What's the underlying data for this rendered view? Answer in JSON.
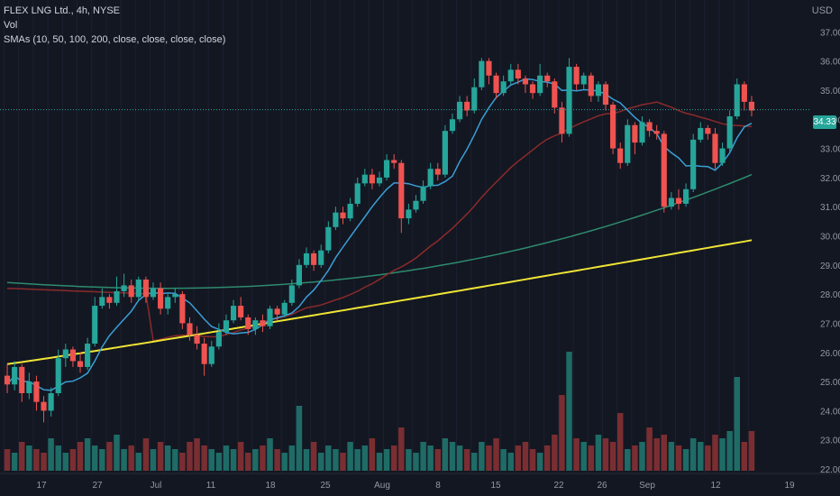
{
  "legend": {
    "symbol": "FLEX LNG Ltd., 4h, NYSE",
    "volume": "Vol",
    "smas": "SMAs (10, 50, 100, 200, close, close, close, close)"
  },
  "currency": "USD",
  "last_price_label": "34.33",
  "colors": {
    "background": "#131722",
    "up": "#26a69a",
    "down": "#ef5350",
    "sma10": "#3a9fd6",
    "sma50": "#8b2a2a",
    "sma100": "#2e8b6e",
    "sma200": "#f0e535"
  },
  "chart_data": {
    "type": "candlestick",
    "ylim": [
      22,
      38
    ],
    "y_ticks": [
      "37.00",
      "36.00",
      "35.00",
      "34.00",
      "33.00",
      "32.00",
      "31.00",
      "30.00",
      "29.00",
      "28.00",
      "27.00",
      "26.00",
      "25.00",
      "24.00",
      "23.00",
      "22.00"
    ],
    "x_ticks": [
      "17",
      "27",
      "Jul",
      "11",
      "18",
      "25",
      "Aug",
      "8",
      "15",
      "22",
      "26",
      "Sep",
      "12",
      "19"
    ],
    "last_price": 34.33,
    "candles": [
      [
        25.2,
        24.9,
        25.6,
        24.6
      ],
      [
        24.9,
        25.5,
        25.7,
        24.7
      ],
      [
        25.5,
        24.6,
        25.6,
        24.3
      ],
      [
        24.6,
        25.0,
        25.3,
        24.4
      ],
      [
        25.0,
        24.3,
        25.2,
        24.0
      ],
      [
        24.3,
        24.0,
        24.5,
        23.6
      ],
      [
        24.0,
        24.6,
        24.8,
        23.8
      ],
      [
        24.6,
        25.8,
        26.1,
        24.5
      ],
      [
        25.8,
        26.1,
        26.3,
        25.5
      ],
      [
        26.1,
        25.7,
        26.2,
        25.5
      ],
      [
        25.7,
        25.5,
        26.0,
        25.3
      ],
      [
        25.5,
        26.3,
        26.5,
        25.4
      ],
      [
        26.3,
        27.6,
        27.9,
        26.2
      ],
      [
        27.6,
        27.9,
        28.2,
        27.5
      ],
      [
        27.9,
        27.7,
        28.0,
        27.5
      ],
      [
        27.7,
        28.1,
        28.6,
        27.6
      ],
      [
        28.1,
        28.3,
        28.7,
        27.9
      ],
      [
        28.3,
        27.9,
        28.5,
        27.7
      ],
      [
        27.9,
        28.5,
        28.6,
        27.8
      ],
      [
        28.5,
        27.9,
        28.6,
        27.7
      ],
      [
        27.9,
        28.2,
        28.4,
        27.8
      ],
      [
        28.2,
        27.5,
        28.4,
        27.3
      ],
      [
        27.5,
        27.9,
        28.0,
        27.3
      ],
      [
        27.9,
        28.0,
        28.2,
        27.7
      ],
      [
        28.0,
        27.0,
        28.1,
        26.8
      ],
      [
        27.0,
        26.6,
        27.2,
        26.4
      ],
      [
        26.6,
        26.3,
        26.9,
        26.1
      ],
      [
        26.3,
        25.6,
        26.5,
        25.2
      ],
      [
        25.6,
        26.2,
        26.4,
        25.5
      ],
      [
        26.2,
        26.7,
        27.0,
        26.1
      ],
      [
        26.7,
        27.1,
        27.3,
        26.6
      ],
      [
        27.1,
        27.6,
        27.8,
        27.0
      ],
      [
        27.6,
        27.2,
        27.9,
        27.1
      ],
      [
        27.2,
        26.8,
        27.3,
        26.6
      ],
      [
        26.8,
        27.1,
        27.2,
        26.6
      ],
      [
        27.1,
        26.9,
        27.3,
        26.7
      ],
      [
        26.9,
        27.5,
        27.6,
        26.8
      ],
      [
        27.5,
        27.3,
        27.6,
        27.1
      ],
      [
        27.3,
        27.7,
        27.8,
        27.2
      ],
      [
        27.7,
        28.3,
        28.5,
        27.6
      ],
      [
        28.3,
        29.0,
        29.2,
        28.2
      ],
      [
        29.0,
        29.4,
        29.6,
        28.9
      ],
      [
        29.4,
        29.0,
        29.5,
        28.8
      ],
      [
        29.0,
        29.5,
        29.7,
        28.9
      ],
      [
        29.5,
        30.3,
        30.5,
        29.4
      ],
      [
        30.3,
        30.8,
        31.0,
        30.2
      ],
      [
        30.8,
        30.6,
        31.0,
        30.4
      ],
      [
        30.6,
        31.1,
        31.3,
        30.5
      ],
      [
        31.1,
        31.8,
        32.0,
        31.0
      ],
      [
        31.8,
        32.1,
        32.3,
        31.7
      ],
      [
        32.1,
        31.8,
        32.3,
        31.6
      ],
      [
        31.8,
        32.0,
        32.2,
        31.7
      ],
      [
        32.0,
        32.6,
        32.8,
        31.9
      ],
      [
        32.6,
        32.5,
        32.8,
        32.3
      ],
      [
        32.5,
        30.6,
        32.6,
        30.1
      ],
      [
        30.6,
        30.9,
        31.1,
        30.4
      ],
      [
        30.9,
        31.2,
        31.4,
        30.8
      ],
      [
        31.2,
        31.7,
        31.9,
        31.1
      ],
      [
        31.7,
        32.3,
        32.5,
        31.6
      ],
      [
        32.3,
        32.1,
        32.5,
        31.9
      ],
      [
        32.1,
        33.6,
        33.8,
        32.0
      ],
      [
        33.6,
        34.0,
        34.2,
        33.5
      ],
      [
        34.0,
        34.6,
        34.8,
        33.9
      ],
      [
        34.6,
        34.3,
        34.8,
        34.1
      ],
      [
        34.3,
        35.1,
        35.4,
        34.2
      ],
      [
        35.1,
        36.0,
        36.1,
        35.0
      ],
      [
        36.0,
        35.5,
        36.1,
        35.2
      ],
      [
        35.5,
        34.9,
        35.6,
        34.7
      ],
      [
        34.9,
        35.3,
        35.5,
        34.8
      ],
      [
        35.3,
        35.7,
        35.9,
        35.2
      ],
      [
        35.7,
        35.4,
        35.9,
        35.2
      ],
      [
        35.4,
        35.2,
        35.5,
        34.9
      ],
      [
        35.2,
        34.9,
        35.3,
        34.7
      ],
      [
        34.9,
        35.5,
        35.9,
        34.8
      ],
      [
        35.5,
        35.3,
        35.6,
        35.1
      ],
      [
        35.3,
        34.4,
        35.4,
        34.2
      ],
      [
        34.4,
        33.5,
        34.6,
        33.2
      ],
      [
        33.5,
        35.8,
        36.1,
        33.4
      ],
      [
        35.8,
        35.2,
        35.9,
        35.0
      ],
      [
        35.2,
        35.5,
        35.6,
        35.0
      ],
      [
        35.5,
        34.8,
        35.6,
        34.6
      ],
      [
        34.8,
        35.2,
        35.3,
        34.6
      ],
      [
        35.2,
        34.5,
        35.3,
        34.3
      ],
      [
        34.5,
        33.0,
        34.6,
        32.8
      ],
      [
        33.0,
        32.5,
        33.2,
        32.3
      ],
      [
        32.5,
        33.8,
        34.0,
        32.4
      ],
      [
        33.8,
        33.2,
        33.9,
        32.8
      ],
      [
        33.2,
        33.9,
        34.1,
        33.1
      ],
      [
        33.9,
        33.6,
        34.0,
        33.4
      ],
      [
        33.6,
        33.5,
        33.8,
        33.3
      ],
      [
        33.5,
        31.0,
        33.6,
        30.8
      ],
      [
        31.0,
        31.3,
        31.5,
        30.9
      ],
      [
        31.3,
        31.1,
        31.6,
        30.9
      ],
      [
        31.1,
        31.6,
        31.8,
        31.0
      ],
      [
        31.6,
        33.3,
        33.5,
        31.5
      ],
      [
        33.3,
        33.7,
        33.9,
        33.2
      ],
      [
        33.7,
        33.5,
        33.8,
        33.3
      ],
      [
        33.5,
        32.5,
        33.7,
        32.3
      ],
      [
        32.5,
        33.0,
        33.2,
        32.4
      ],
      [
        33.0,
        34.1,
        34.3,
        32.9
      ],
      [
        34.1,
        35.2,
        35.4,
        34.0
      ],
      [
        35.2,
        34.6,
        35.3,
        34.3
      ],
      [
        34.6,
        34.3,
        34.8,
        34.1
      ]
    ],
    "volume": [
      6,
      5,
      8,
      7,
      6,
      5,
      9,
      7,
      5,
      6,
      8,
      9,
      7,
      6,
      8,
      10,
      6,
      7,
      5,
      9,
      6,
      8,
      7,
      6,
      5,
      8,
      9,
      7,
      6,
      5,
      7,
      6,
      8,
      5,
      6,
      7,
      9,
      6,
      5,
      7,
      18,
      6,
      8,
      5,
      7,
      6,
      5,
      8,
      6,
      7,
      9,
      5,
      6,
      7,
      12,
      6,
      5,
      8,
      7,
      6,
      9,
      8,
      7,
      6,
      5,
      8,
      7,
      9,
      6,
      5,
      7,
      8,
      6,
      5,
      7,
      10,
      21,
      33,
      9,
      8,
      7,
      10,
      9,
      8,
      16,
      6,
      7,
      8,
      12,
      9,
      10,
      8,
      7,
      6,
      9,
      8,
      7,
      10,
      9,
      11,
      26,
      8,
      11
    ]
  }
}
